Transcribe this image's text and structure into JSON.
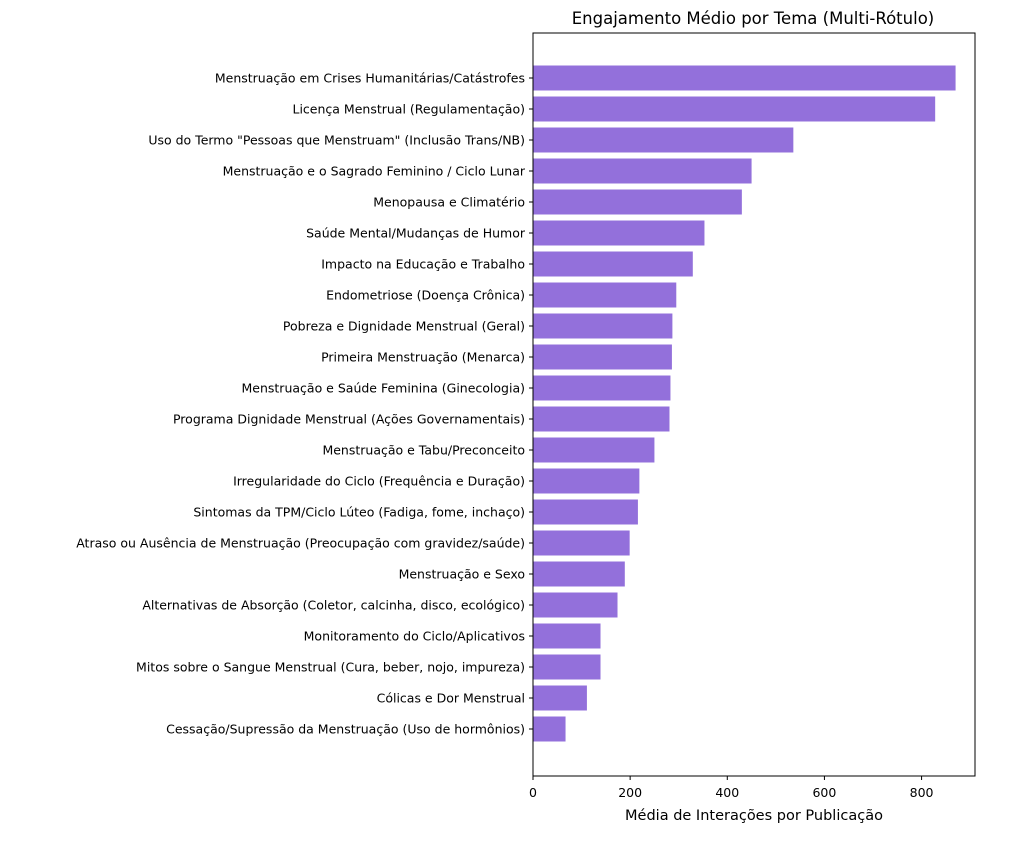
{
  "chart_data": {
    "type": "bar",
    "orientation": "horizontal",
    "title": "Engajamento Médio por Tema (Multi-Rótulo)",
    "xlabel": "Média de Interações por Publicação",
    "ylabel": "",
    "xlim": [
      0,
      910
    ],
    "x_ticks": [
      0,
      200,
      400,
      600,
      800
    ],
    "x_tick_labels": [
      "0",
      "200",
      "400",
      "600",
      "800"
    ],
    "bar_color": "#9370DB",
    "grid": false,
    "categories": [
      "Menstruação em Crises Humanitárias/Catástrofes",
      "Licença Menstrual (Regulamentação)",
      "Uso do Termo \"Pessoas que Menstruam\" (Inclusão Trans/NB)",
      "Menstruação e o Sagrado Feminino / Ciclo Lunar",
      "Menopausa e Climatério",
      "Saúde Mental/Mudanças de Humor",
      "Impacto na Educação e Trabalho",
      "Endometriose (Doença Crônica)",
      "Pobreza e Dignidade Menstrual (Geral)",
      "Primeira Menstruação (Menarca)",
      "Menstruação e Saúde Feminina (Ginecologia)",
      "Programa Dignidade Menstrual (Ações Governamentais)",
      "Menstruação e Tabu/Preconceito",
      "Irregularidade do Ciclo (Frequência e Duração)",
      "Sintomas da TPM/Ciclo Lúteo (Fadiga, fome, inchaço)",
      "Atraso ou Ausência de Menstruação (Preocupação com gravidez/saúde)",
      "Menstruação e Sexo",
      "Alternativas de Absorção (Coletor, calcinha, disco, ecológico)",
      "Monitoramento do Ciclo/Aplicativos",
      "Mitos sobre o Sangue Menstrual (Cura, beber, nojo, impureza)",
      "Cólicas e Dor Menstrual",
      "Cessação/Supressão da Menstruação (Uso de hormônios)"
    ],
    "values": [
      870,
      828,
      536,
      450,
      430,
      353,
      329,
      295,
      287,
      286,
      283,
      281,
      250,
      219,
      216,
      199,
      189,
      174,
      139,
      139,
      111,
      67
    ]
  }
}
